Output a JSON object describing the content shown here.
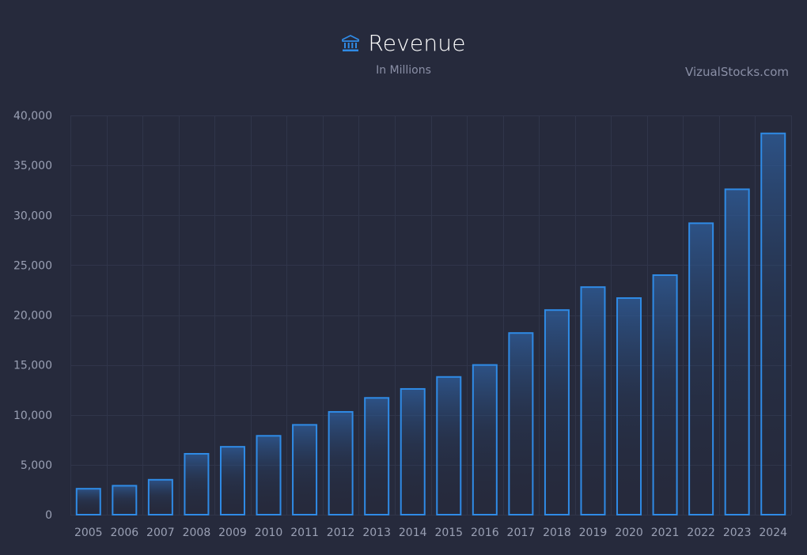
{
  "header": {
    "title": "Revenue",
    "subtitle": "In Millions",
    "icon": "bank-icon",
    "brand": "VizualStocks.com"
  },
  "colors": {
    "background": "#262a3c",
    "bar_stroke": "#2f8be6",
    "bar_fill_top": "#2f5f9e",
    "grid": "#30354a",
    "title": "#ffffff",
    "muted_text": "#8a8fa6"
  },
  "chart_data": {
    "type": "bar",
    "title": "Revenue",
    "subtitle": "In Millions",
    "categories": [
      "2005",
      "2006",
      "2007",
      "2008",
      "2009",
      "2010",
      "2011",
      "2012",
      "2013",
      "2014",
      "2015",
      "2016",
      "2017",
      "2018",
      "2019",
      "2020",
      "2021",
      "2022",
      "2023",
      "2024"
    ],
    "values": [
      2600,
      2900,
      3500,
      6100,
      6800,
      7900,
      9000,
      10300,
      11700,
      12600,
      13800,
      15000,
      18200,
      20500,
      22800,
      21700,
      24000,
      29200,
      32600,
      38200
    ],
    "ylim": [
      0,
      40000
    ],
    "yticks": [
      0,
      5000,
      10000,
      15000,
      20000,
      25000,
      30000,
      35000,
      40000
    ],
    "ytick_labels": [
      "0",
      "5,000",
      "10,000",
      "15,000",
      "20,000",
      "25,000",
      "30,000",
      "35,000",
      "40,000"
    ],
    "xlabel": "",
    "ylabel": "",
    "grid": true,
    "legend": "none"
  }
}
